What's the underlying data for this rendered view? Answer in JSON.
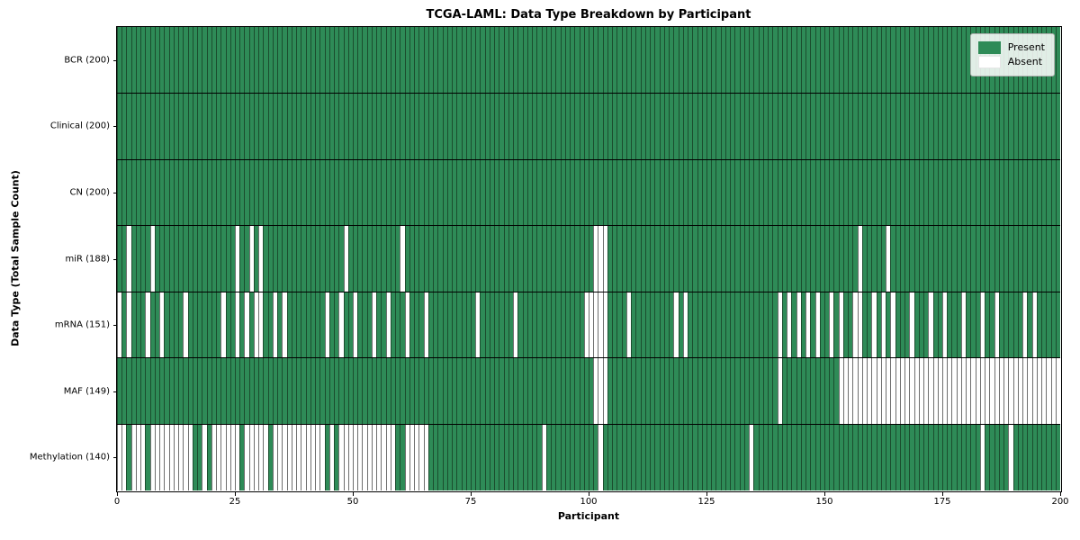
{
  "title": "TCGA-LAML: Data Type Breakdown by Participant",
  "axes": {
    "xlabel": "Participant",
    "ylabel": "Data Type (Total Sample Count)",
    "x_ticks": [
      0,
      25,
      50,
      75,
      100,
      125,
      150,
      175,
      200
    ],
    "x_range": [
      0,
      200
    ]
  },
  "legend": {
    "position": "upper right",
    "items": [
      {
        "label": "Present",
        "color": "#2e8b57",
        "edge": "#2e8b57"
      },
      {
        "label": "Absent",
        "color": "#ffffff",
        "edge": "#e6e6e6"
      }
    ]
  },
  "colors": {
    "present_fill": "#2e8b57",
    "present_edge": "#1b4d2e",
    "absent_fill": "#ffffff",
    "absent_edge": "#6f6f6f",
    "row_divider": "#000000",
    "axes_border": "#000000"
  },
  "chart_data": {
    "type": "heatmap",
    "x_axis": "participant index",
    "n_participants": 200,
    "cell_states": [
      "Present",
      "Absent"
    ],
    "rows": [
      {
        "label": "BCR (200)",
        "data_type": "bcr",
        "present_count": 200,
        "absent_participants": []
      },
      {
        "label": "Clinical (200)",
        "data_type": "clinical",
        "present_count": 200,
        "absent_participants": []
      },
      {
        "label": "CN (200)",
        "data_type": "cn",
        "present_count": 200,
        "absent_participants": []
      },
      {
        "label": "miR (188)",
        "data_type": "mir",
        "present_count": 188,
        "absent_participants": [
          2,
          7,
          25,
          28,
          30,
          48,
          60,
          101,
          102,
          103,
          157,
          163
        ]
      },
      {
        "label": "mRNA (151)",
        "data_type": "mrna",
        "present_count": 151,
        "absent_participants": [
          0,
          2,
          6,
          9,
          14,
          22,
          25,
          27,
          29,
          30,
          33,
          35,
          44,
          47,
          50,
          54,
          57,
          61,
          65,
          76,
          84,
          99,
          100,
          101,
          102,
          103,
          108,
          118,
          120,
          140,
          142,
          144,
          146,
          148,
          151,
          153,
          156,
          157,
          160,
          162,
          164,
          168,
          172,
          175,
          179,
          183,
          186,
          192,
          194
        ]
      },
      {
        "label": "MAF (149)",
        "data_type": "maf",
        "present_count": 149,
        "absent_participants": [
          101,
          102,
          103,
          140,
          153,
          154,
          155,
          156,
          157,
          158,
          159,
          160,
          161,
          162,
          163,
          164,
          165,
          166,
          167,
          168,
          169,
          170,
          171,
          172,
          173,
          174,
          175,
          176,
          177,
          178,
          179,
          180,
          181,
          182,
          183,
          184,
          185,
          186,
          187,
          188,
          189,
          190,
          191,
          192,
          193,
          194,
          195,
          196,
          197,
          198,
          199
        ]
      },
      {
        "label": "Methylation (140)",
        "data_type": "methylation",
        "present_count": 140,
        "absent_participants": [
          0,
          1,
          3,
          4,
          5,
          7,
          8,
          9,
          10,
          11,
          12,
          13,
          14,
          15,
          18,
          20,
          21,
          22,
          23,
          24,
          25,
          27,
          28,
          29,
          30,
          31,
          33,
          34,
          35,
          36,
          37,
          38,
          39,
          40,
          41,
          42,
          43,
          45,
          47,
          48,
          49,
          50,
          51,
          52,
          53,
          54,
          55,
          56,
          57,
          58,
          61,
          62,
          63,
          64,
          65,
          90,
          102,
          134,
          183,
          189
        ]
      }
    ]
  }
}
